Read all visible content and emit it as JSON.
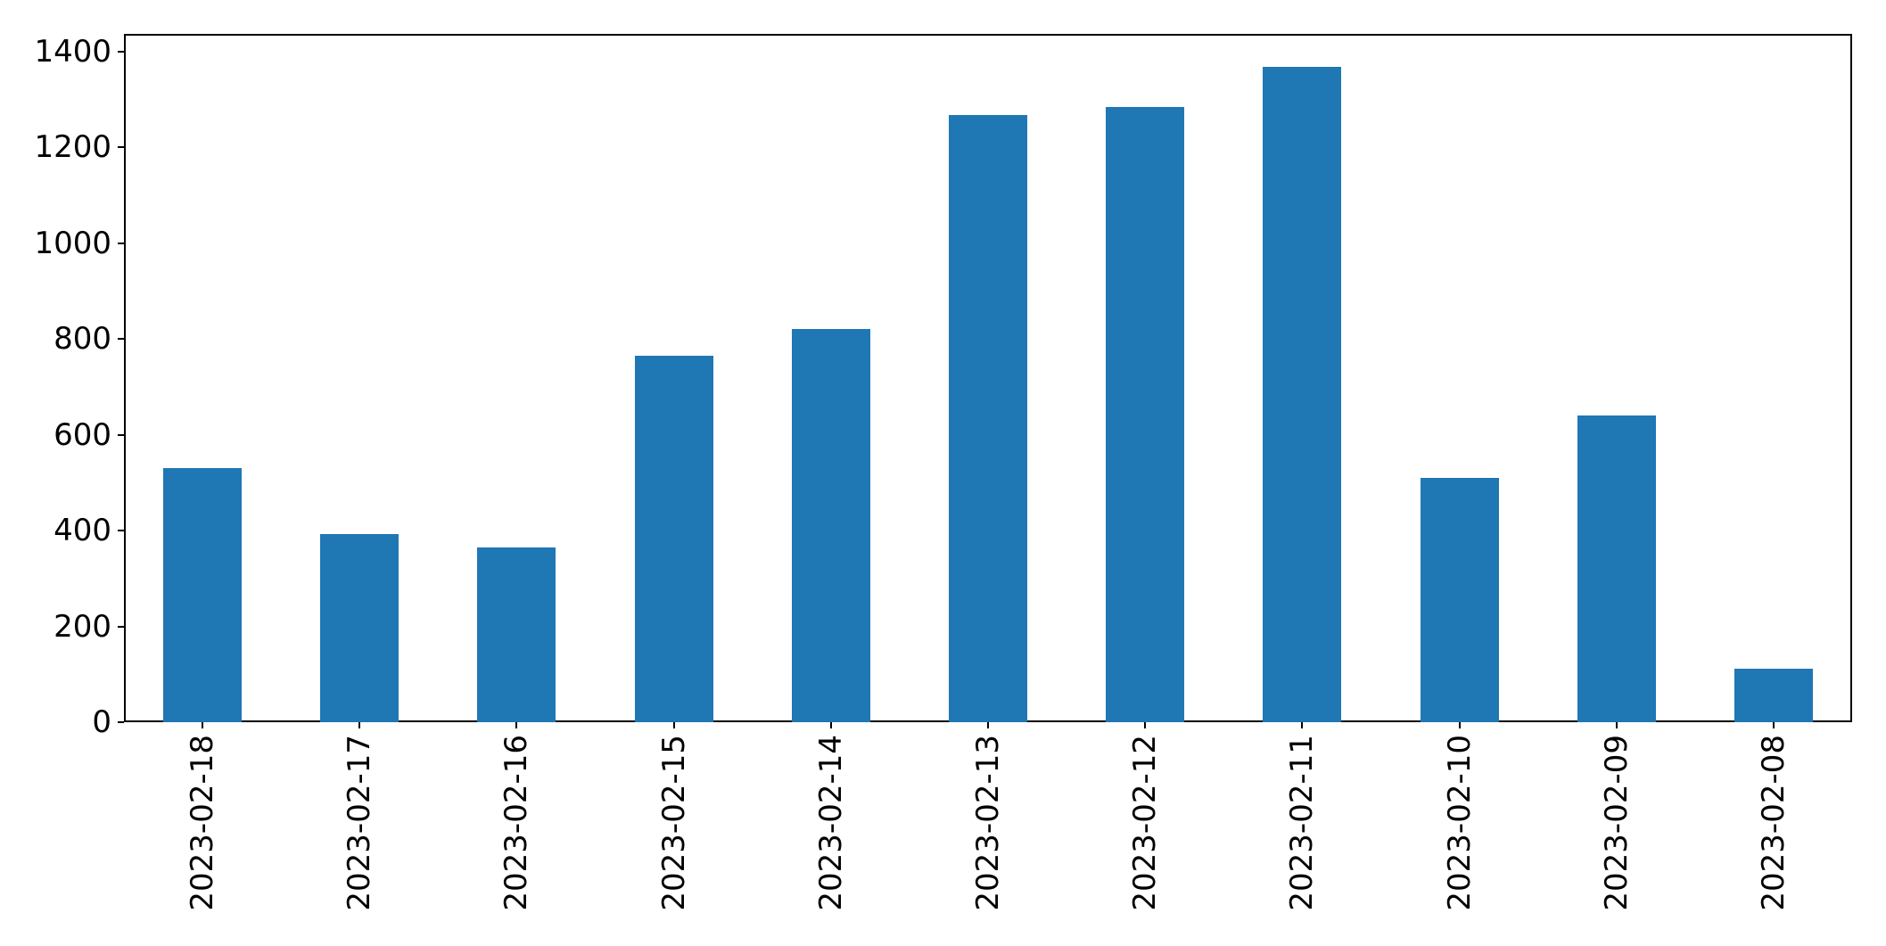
{
  "figure": {
    "title": "",
    "background": "#ffffff",
    "axis_color": "#000000",
    "text_color": "#000000"
  },
  "chart_data": {
    "type": "bar",
    "title": "",
    "xlabel": "",
    "ylabel": "",
    "categories": [
      "2023-02-18",
      "2023-02-17",
      "2023-02-16",
      "2023-02-15",
      "2023-02-14",
      "2023-02-13",
      "2023-02-12",
      "2023-02-11",
      "2023-02-10",
      "2023-02-09",
      "2023-02-08"
    ],
    "values": [
      530,
      392,
      365,
      765,
      820,
      1267,
      1285,
      1368,
      510,
      640,
      112
    ],
    "bar_color": "#1f77b4",
    "ylim": [
      0,
      1437
    ],
    "yticks": [
      0,
      200,
      400,
      600,
      800,
      1000,
      1200,
      1400
    ],
    "ytick_labels": [
      "0",
      "200",
      "400",
      "600",
      "800",
      "1000",
      "1200",
      "1400"
    ],
    "x_tick_rotation": 90,
    "grid": false,
    "legend": false,
    "bar_width_fraction": 0.5
  }
}
